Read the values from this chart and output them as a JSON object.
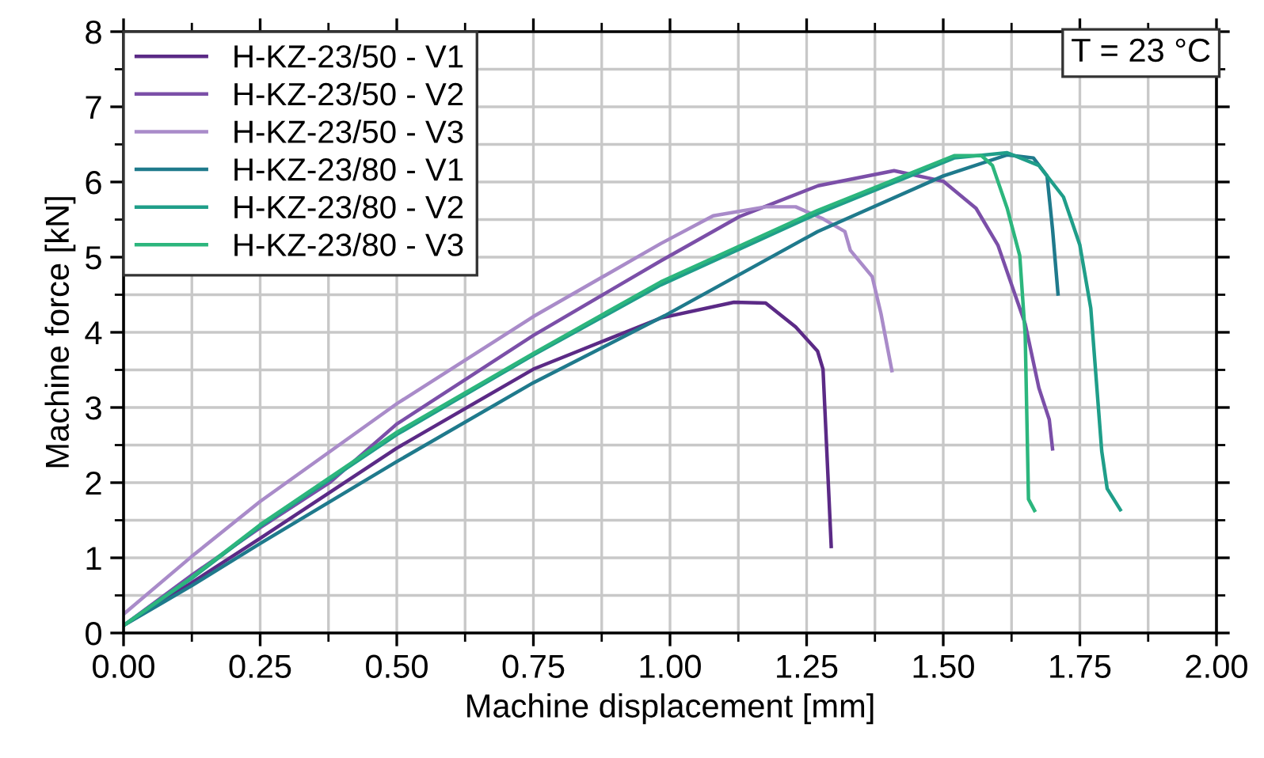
{
  "chart_data": {
    "type": "line",
    "xlabel": "Machine displacement [mm]",
    "ylabel": "Machine force [kN]",
    "xlim": [
      0,
      2
    ],
    "ylim": [
      0,
      8
    ],
    "xticks": [
      {
        "value": 0,
        "label": "0.00"
      },
      {
        "value": 0.25,
        "label": "0.25"
      },
      {
        "value": 0.5,
        "label": "0.50"
      },
      {
        "value": 0.75,
        "label": "0.75"
      },
      {
        "value": 1,
        "label": "1.00"
      },
      {
        "value": 1.25,
        "label": "1.25"
      },
      {
        "value": 1.5,
        "label": "1.50"
      },
      {
        "value": 1.75,
        "label": "1.75"
      },
      {
        "value": 2,
        "label": "2.00"
      }
    ],
    "yticks": [
      0,
      1,
      2,
      3,
      4,
      5,
      6,
      7,
      8
    ],
    "grid": true,
    "legend": "top left",
    "line_style": "solid",
    "marker": "none",
    "annotations": [
      "T = 23 °C"
    ],
    "series": [
      {
        "name": "H-KZ-23/50 - V1",
        "color": "#5b2a86",
        "x": [
          0,
          0.125,
          0.25,
          0.5,
          0.75,
          0.983,
          1.117,
          1.175,
          1.23,
          1.27,
          1.28,
          1.295
        ],
        "values": [
          0.1,
          0.67,
          1.26,
          2.46,
          3.51,
          4.19,
          4.4,
          4.39,
          4.07,
          3.75,
          3.51,
          1.15
        ]
      },
      {
        "name": "H-KZ-23/50 - V2",
        "color": "#7b4fa8",
        "x": [
          0,
          0.125,
          0.25,
          0.377,
          0.5,
          0.75,
          0.983,
          1.127,
          1.271,
          1.41,
          1.5,
          1.56,
          1.6,
          1.65,
          1.675,
          1.694,
          1.7
        ],
        "values": [
          0.1,
          0.77,
          1.4,
          2.0,
          2.78,
          3.96,
          4.95,
          5.54,
          5.95,
          6.15,
          6.01,
          5.65,
          5.16,
          4.11,
          3.26,
          2.84,
          2.45
        ]
      },
      {
        "name": "H-KZ-23/50 - V3",
        "color": "#a98bc9",
        "x": [
          0,
          0.125,
          0.25,
          0.5,
          0.75,
          0.983,
          1.079,
          1.175,
          1.23,
          1.28,
          1.32,
          1.33,
          1.37,
          1.386,
          1.406
        ],
        "values": [
          0.25,
          1.02,
          1.75,
          3.05,
          4.21,
          5.18,
          5.55,
          5.67,
          5.67,
          5.51,
          5.34,
          5.09,
          4.74,
          4.25,
          3.49
        ]
      },
      {
        "name": "H-KZ-23/80 - V1",
        "color": "#1f7a8c",
        "x": [
          0,
          0.125,
          0.25,
          0.5,
          0.75,
          0.99,
          1.27,
          1.5,
          1.617,
          1.665,
          1.69,
          1.7,
          1.71
        ],
        "values": [
          0.1,
          0.63,
          1.19,
          2.28,
          3.33,
          4.22,
          5.34,
          6.08,
          6.36,
          6.32,
          6.08,
          5.37,
          4.51
        ]
      },
      {
        "name": "H-KZ-23/80 - V2",
        "color": "#1f9e89",
        "x": [
          0,
          0.125,
          0.25,
          0.5,
          0.75,
          0.983,
          1.27,
          1.52,
          1.617,
          1.675,
          1.72,
          1.75,
          1.77,
          1.79,
          1.8,
          1.824
        ],
        "values": [
          0.1,
          0.73,
          1.42,
          2.64,
          3.7,
          4.63,
          5.58,
          6.32,
          6.39,
          6.22,
          5.8,
          5.16,
          4.32,
          2.42,
          1.92,
          1.64
        ]
      },
      {
        "name": "H-KZ-23/80 - V3",
        "color": "#2cb67d",
        "x": [
          0,
          0.125,
          0.25,
          0.5,
          0.75,
          0.983,
          1.27,
          1.52,
          1.57,
          1.59,
          1.617,
          1.64,
          1.65,
          1.656,
          1.667
        ],
        "values": [
          0.1,
          0.74,
          1.44,
          2.67,
          3.72,
          4.67,
          5.62,
          6.35,
          6.35,
          6.22,
          5.65,
          5.02,
          3.96,
          1.78,
          1.63
        ]
      }
    ]
  }
}
